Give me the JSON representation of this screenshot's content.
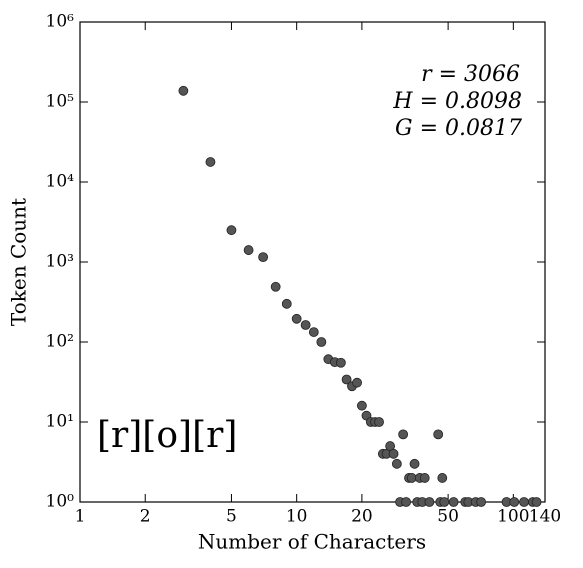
{
  "chart_data": {
    "type": "scatter",
    "xlabel": "Number of Characters",
    "ylabel": "Token Count",
    "xscale": "log",
    "yscale": "log",
    "xlim": [
      1,
      140
    ],
    "ylim": [
      1,
      1000000
    ],
    "xticks": [
      1,
      2,
      5,
      10,
      20,
      50,
      100,
      140
    ],
    "yticks": [
      {
        "value": 1,
        "label": "10⁰"
      },
      {
        "value": 10,
        "label": "10¹"
      },
      {
        "value": 100,
        "label": "10²"
      },
      {
        "value": 1000,
        "label": "10³"
      },
      {
        "value": 10000,
        "label": "10⁴"
      },
      {
        "value": 100000,
        "label": "10⁵"
      },
      {
        "value": 1000000,
        "label": "10⁶"
      }
    ],
    "annotations": [
      "r = 3066",
      "H = 0.8098",
      "G = 0.0817",
      "[r][o][r]"
    ],
    "series": [
      {
        "color": "#555555",
        "x": [
          3,
          4,
          5,
          6,
          7,
          8,
          9,
          10,
          11,
          12,
          13,
          14,
          15,
          16,
          17,
          18,
          19,
          20,
          21,
          22,
          23,
          24,
          25,
          26,
          27,
          28,
          29,
          30,
          31,
          32,
          33,
          34,
          35,
          36,
          37,
          38,
          39,
          41,
          45,
          46,
          47,
          48,
          53,
          60,
          62,
          67,
          71,
          93,
          101,
          112,
          123,
          128
        ],
        "values": [
          138000,
          17800,
          2500,
          1410,
          1150,
          490,
          300,
          195,
          163,
          133,
          100,
          61,
          56,
          55,
          34,
          28,
          31,
          16,
          12,
          10,
          10,
          10,
          4,
          4,
          5,
          4,
          3,
          1,
          7,
          1,
          2,
          2,
          3,
          1,
          2,
          1,
          2,
          1,
          7,
          1,
          2,
          1,
          1,
          1,
          1,
          1,
          1,
          1,
          1,
          1,
          1,
          1
        ]
      }
    ]
  }
}
